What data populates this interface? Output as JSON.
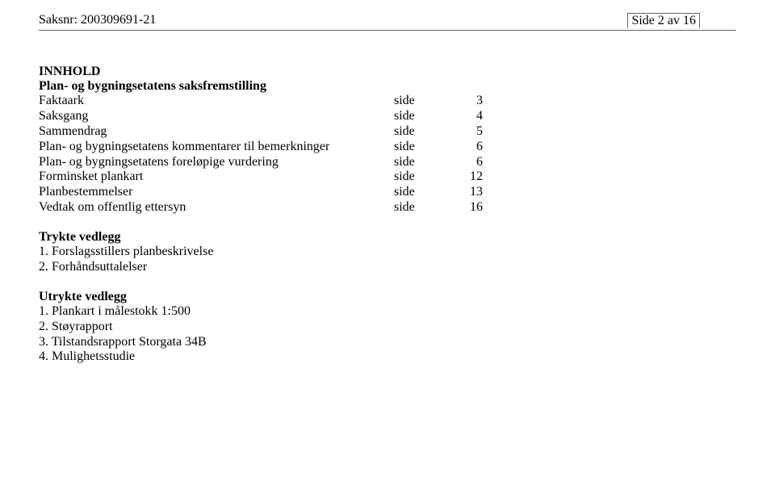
{
  "header": {
    "saksnr_label": "Saksnr:",
    "saksnr_value": "200309691-21",
    "side_label": "Side 2 av 16"
  },
  "innhold_title": "INNHOLD",
  "sub_title": "Plan- og bygningsetatens saksfremstilling",
  "toc": [
    {
      "label": "Faktaark",
      "side": "side",
      "num": "3"
    },
    {
      "label": "Saksgang",
      "side": "side",
      "num": "4"
    },
    {
      "label": "Sammendrag",
      "side": "side",
      "num": "5"
    },
    {
      "label": "Plan- og bygningsetatens kommentarer til bemerkninger",
      "side": "side",
      "num": "6"
    },
    {
      "label": "Plan- og bygningsetatens foreløpige vurdering",
      "side": "side",
      "num": "6"
    },
    {
      "label": "Forminsket plankart",
      "side": "side",
      "num": "12"
    },
    {
      "label": "Planbestemmelser",
      "side": "side",
      "num": "13"
    },
    {
      "label": "Vedtak om offentlig ettersyn",
      "side": "side",
      "num": "16"
    }
  ],
  "trykte_title": "Trykte vedlegg",
  "trykte": [
    "1.   Forslagsstillers planbeskrivelse",
    "2.   Forhåndsuttalelser"
  ],
  "utrykte_title": "Utrykte vedlegg",
  "utrykte": [
    "1.   Plankart i målestokk 1:500",
    "2.   Støyrapport",
    "3.   Tilstandsrapport Storgata 34B",
    "4.   Mulighetsstudie"
  ]
}
